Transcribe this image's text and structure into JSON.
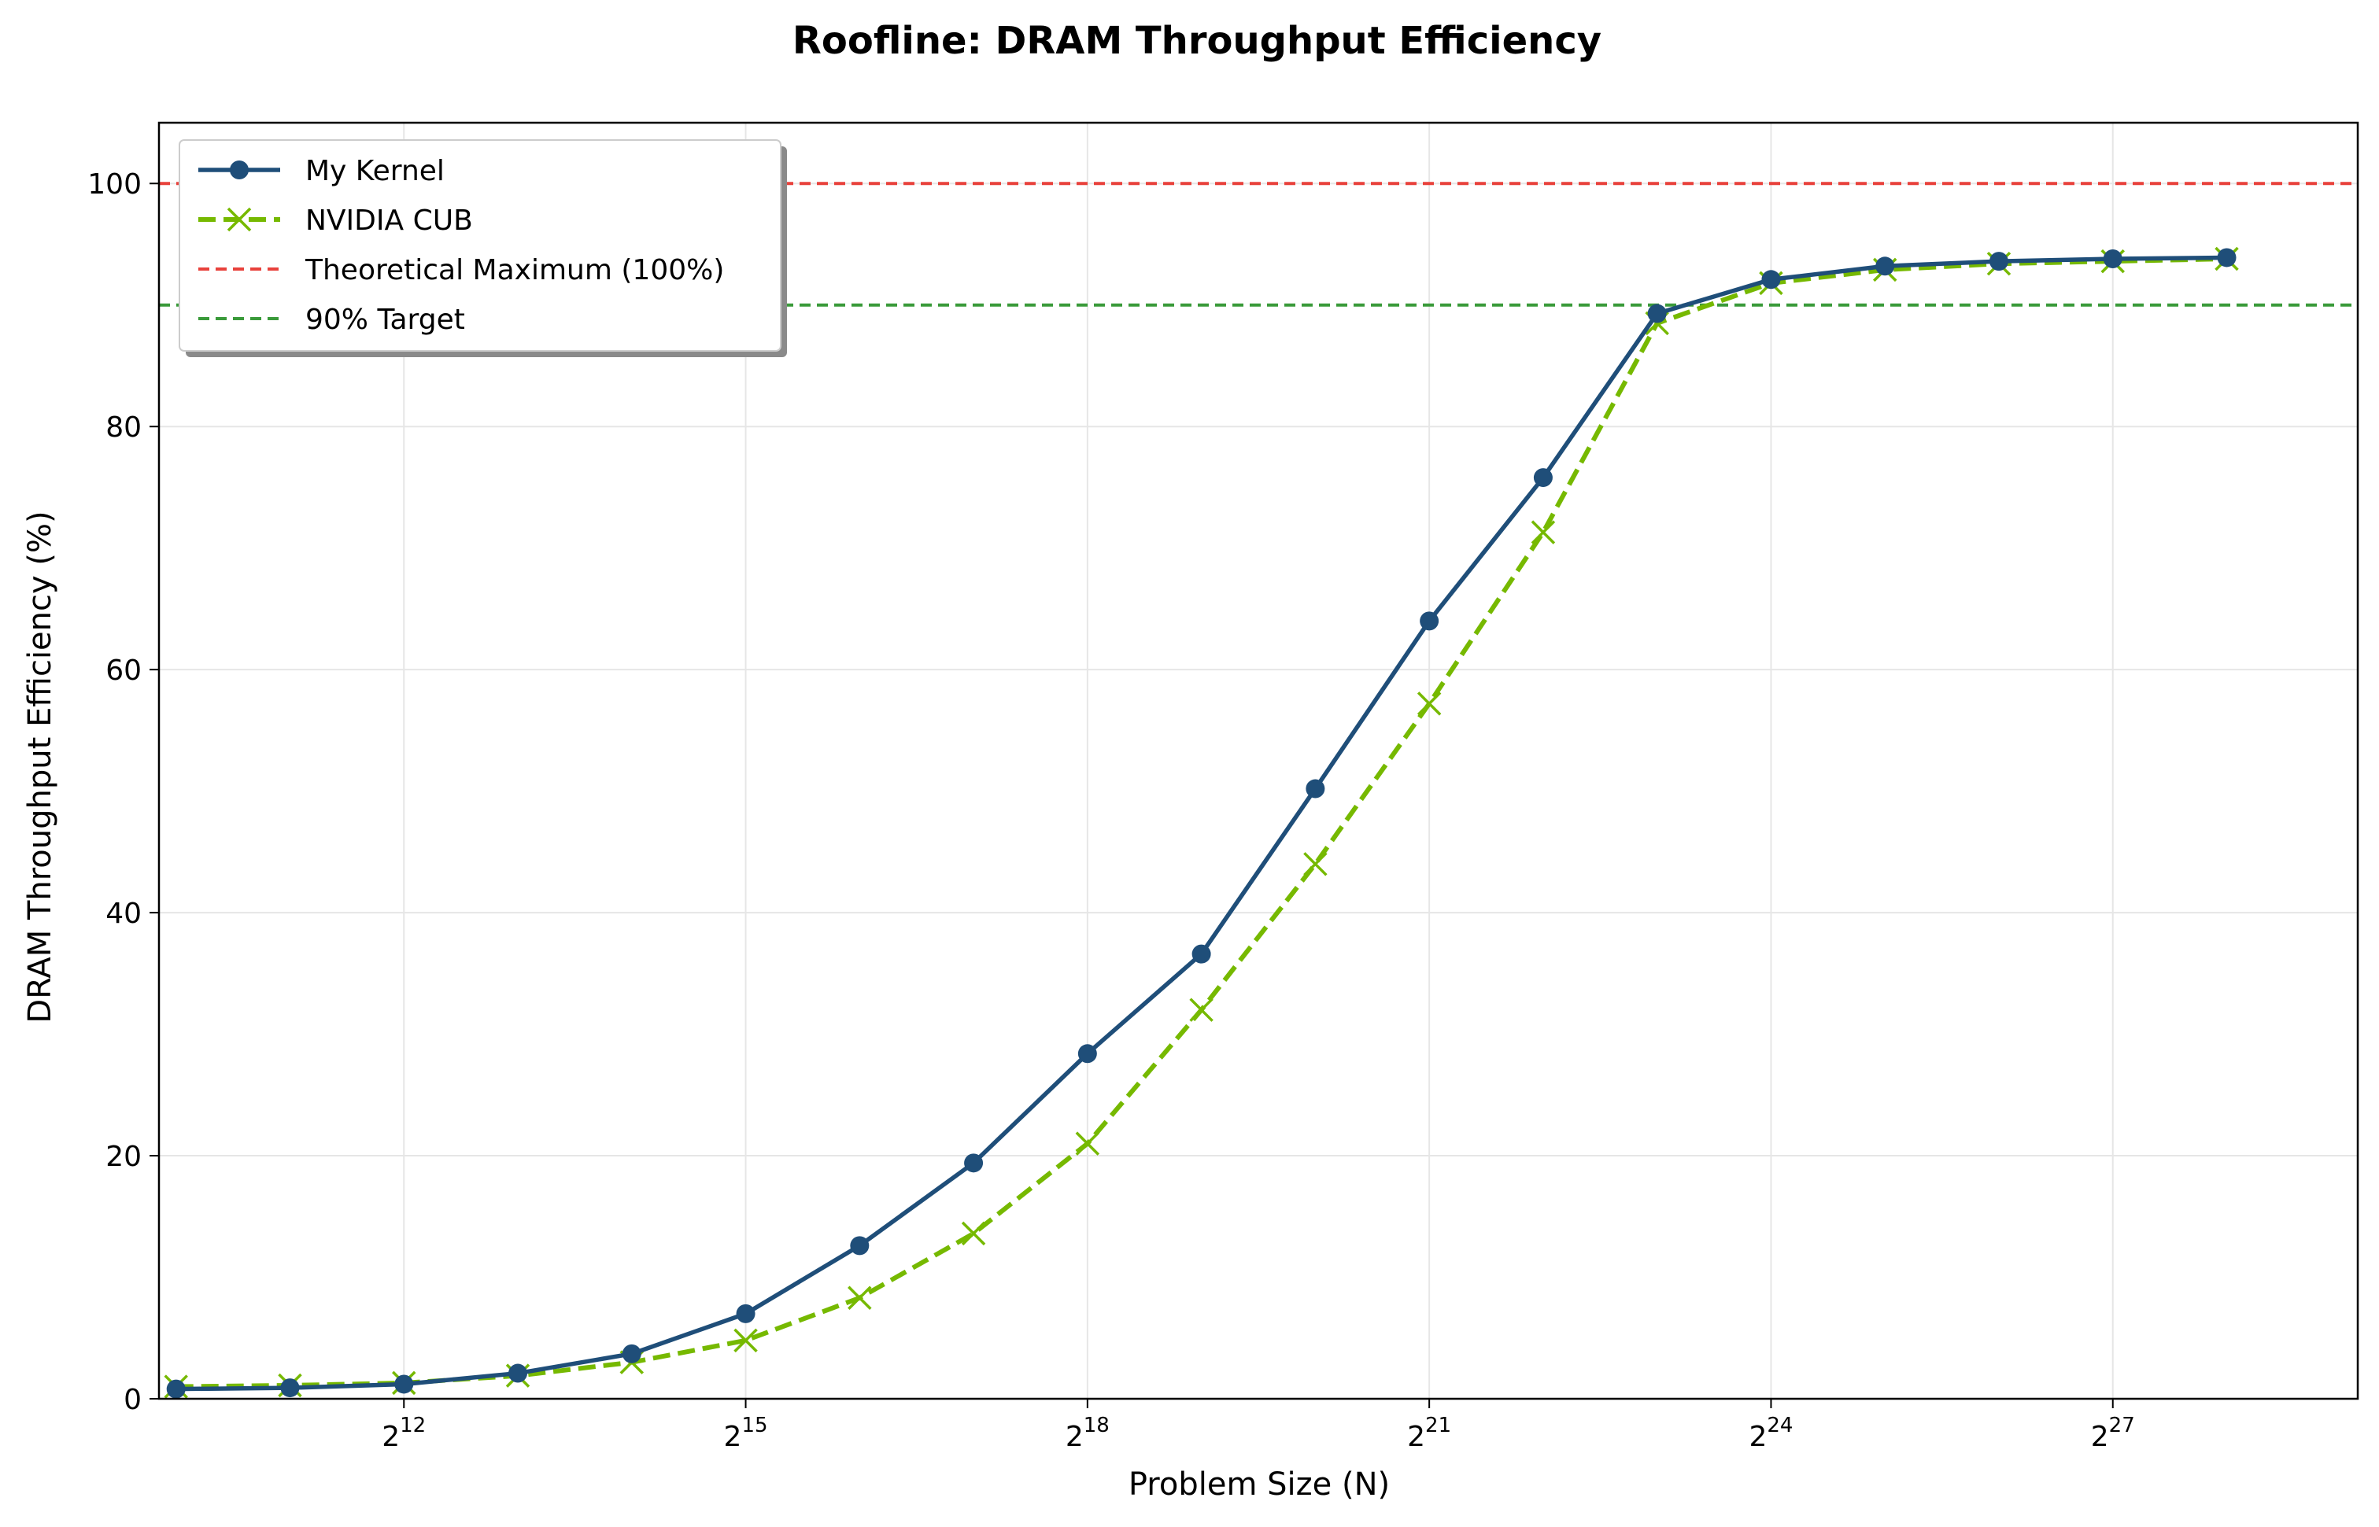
{
  "chart_data": {
    "type": "line",
    "title": "Roofline: DRAM Throughput Efficiency",
    "xlabel": "Problem Size (N)",
    "ylabel": "DRAM Throughput Efficiency (%)",
    "x_scale": "log2",
    "x_ticks": [
      {
        "base": "2",
        "exp": "12",
        "value": 4096
      },
      {
        "base": "2",
        "exp": "15",
        "value": 32768
      },
      {
        "base": "2",
        "exp": "18",
        "value": 262144
      },
      {
        "base": "2",
        "exp": "21",
        "value": 2097152
      },
      {
        "base": "2",
        "exp": "24",
        "value": 16777216
      },
      {
        "base": "2",
        "exp": "27",
        "value": 134217728
      }
    ],
    "xlim": [
      0.85,
      20.15
    ],
    "y_ticks": [
      0,
      20,
      40,
      60,
      80,
      100
    ],
    "ylim": [
      0,
      105
    ],
    "grid": true,
    "legend_position": "top-left",
    "x": [
      1024,
      2048,
      4096,
      8192,
      16384,
      32768,
      65536,
      131072,
      262144,
      524288,
      1048576,
      2097152,
      4194304,
      8388608,
      16777216,
      33554432,
      67108864,
      134217728,
      268435456
    ],
    "series": [
      {
        "name": "My Kernel",
        "color": "#1f4e79",
        "marker": "circle",
        "line_style": "solid",
        "values": [
          0.8,
          0.9,
          1.2,
          2.1,
          3.7,
          7.0,
          12.6,
          19.4,
          28.4,
          36.6,
          50.2,
          64.0,
          75.8,
          89.3,
          92.1,
          93.2,
          93.6,
          93.8,
          93.9
        ]
      },
      {
        "name": "NVIDIA CUB",
        "color": "#76b900",
        "marker": "x",
        "line_style": "dashed",
        "values": [
          1.0,
          1.1,
          1.3,
          1.9,
          3.0,
          4.8,
          8.3,
          13.6,
          21.0,
          32.0,
          44.0,
          57.2,
          71.3,
          88.5,
          91.8,
          92.9,
          93.4,
          93.6,
          93.8
        ]
      }
    ],
    "reference_lines": [
      {
        "name": "Theoretical Maximum (100%)",
        "y": 100,
        "color": "#e8413b",
        "line_style": "dashed"
      },
      {
        "name": "90% Target",
        "y": 90,
        "color": "#3a9a3a",
        "line_style": "dashed"
      }
    ]
  }
}
